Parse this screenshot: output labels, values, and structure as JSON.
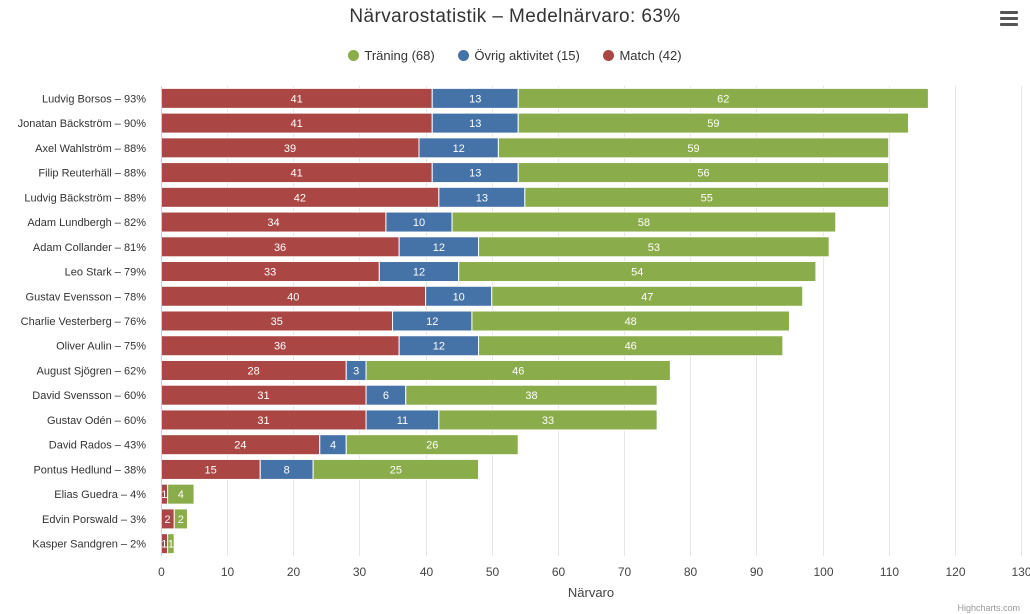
{
  "menu_icon": "hamburger-menu-icon",
  "credits": "Highcharts.com",
  "chart_data": {
    "type": "bar",
    "stacked": true,
    "title": "Närvarostatistik – Medelnärvaro: 63%",
    "xlabel": "Närvaro",
    "ylabel": "",
    "xlim": [
      0,
      130
    ],
    "x_ticks": [
      "0",
      "10",
      "20",
      "30",
      "40",
      "50",
      "60",
      "70",
      "80",
      "90",
      "100",
      "110",
      "120",
      "130"
    ],
    "legend_position": "top-center",
    "legend": [
      {
        "label": "Träning (68)",
        "color": "#8bac4a"
      },
      {
        "label": "Övrig aktivitet (15)",
        "color": "#4572a7"
      },
      {
        "label": "Match (42)",
        "color": "#aa4643"
      }
    ],
    "categories": [
      "Ludvig Borsos – 93%",
      "Jonatan Bäckström – 90%",
      "Axel Wahlström – 88%",
      "Filip Reuterhäll – 88%",
      "Ludvig Bäckström – 88%",
      "Adam Lundbergh – 82%",
      "Adam Collander – 81%",
      "Leo Stark – 79%",
      "Gustav Evensson – 78%",
      "Charlie Vesterberg – 76%",
      "Oliver Aulin – 75%",
      "August Sjögren – 62%",
      "David Svensson – 60%",
      "Gustav Odén – 60%",
      "David Rados – 43%",
      "Pontus Hedlund – 38%",
      "Elias Guedra – 4%",
      "Edvin Porswald – 3%",
      "Kasper Sandgren – 2%"
    ],
    "series": [
      {
        "name": "Match",
        "color": "#aa4643",
        "values": [
          41,
          41,
          39,
          41,
          42,
          34,
          36,
          33,
          40,
          35,
          36,
          28,
          31,
          31,
          24,
          15,
          1,
          2,
          1
        ]
      },
      {
        "name": "Övrig aktivitet",
        "color": "#4572a7",
        "values": [
          13,
          13,
          12,
          13,
          13,
          10,
          12,
          12,
          10,
          12,
          12,
          3,
          6,
          11,
          4,
          8,
          0,
          0,
          0
        ]
      },
      {
        "name": "Träning",
        "color": "#8bac4a",
        "values": [
          62,
          59,
          59,
          56,
          55,
          58,
          53,
          54,
          47,
          48,
          46,
          46,
          38,
          33,
          26,
          25,
          4,
          2,
          1
        ]
      }
    ]
  }
}
